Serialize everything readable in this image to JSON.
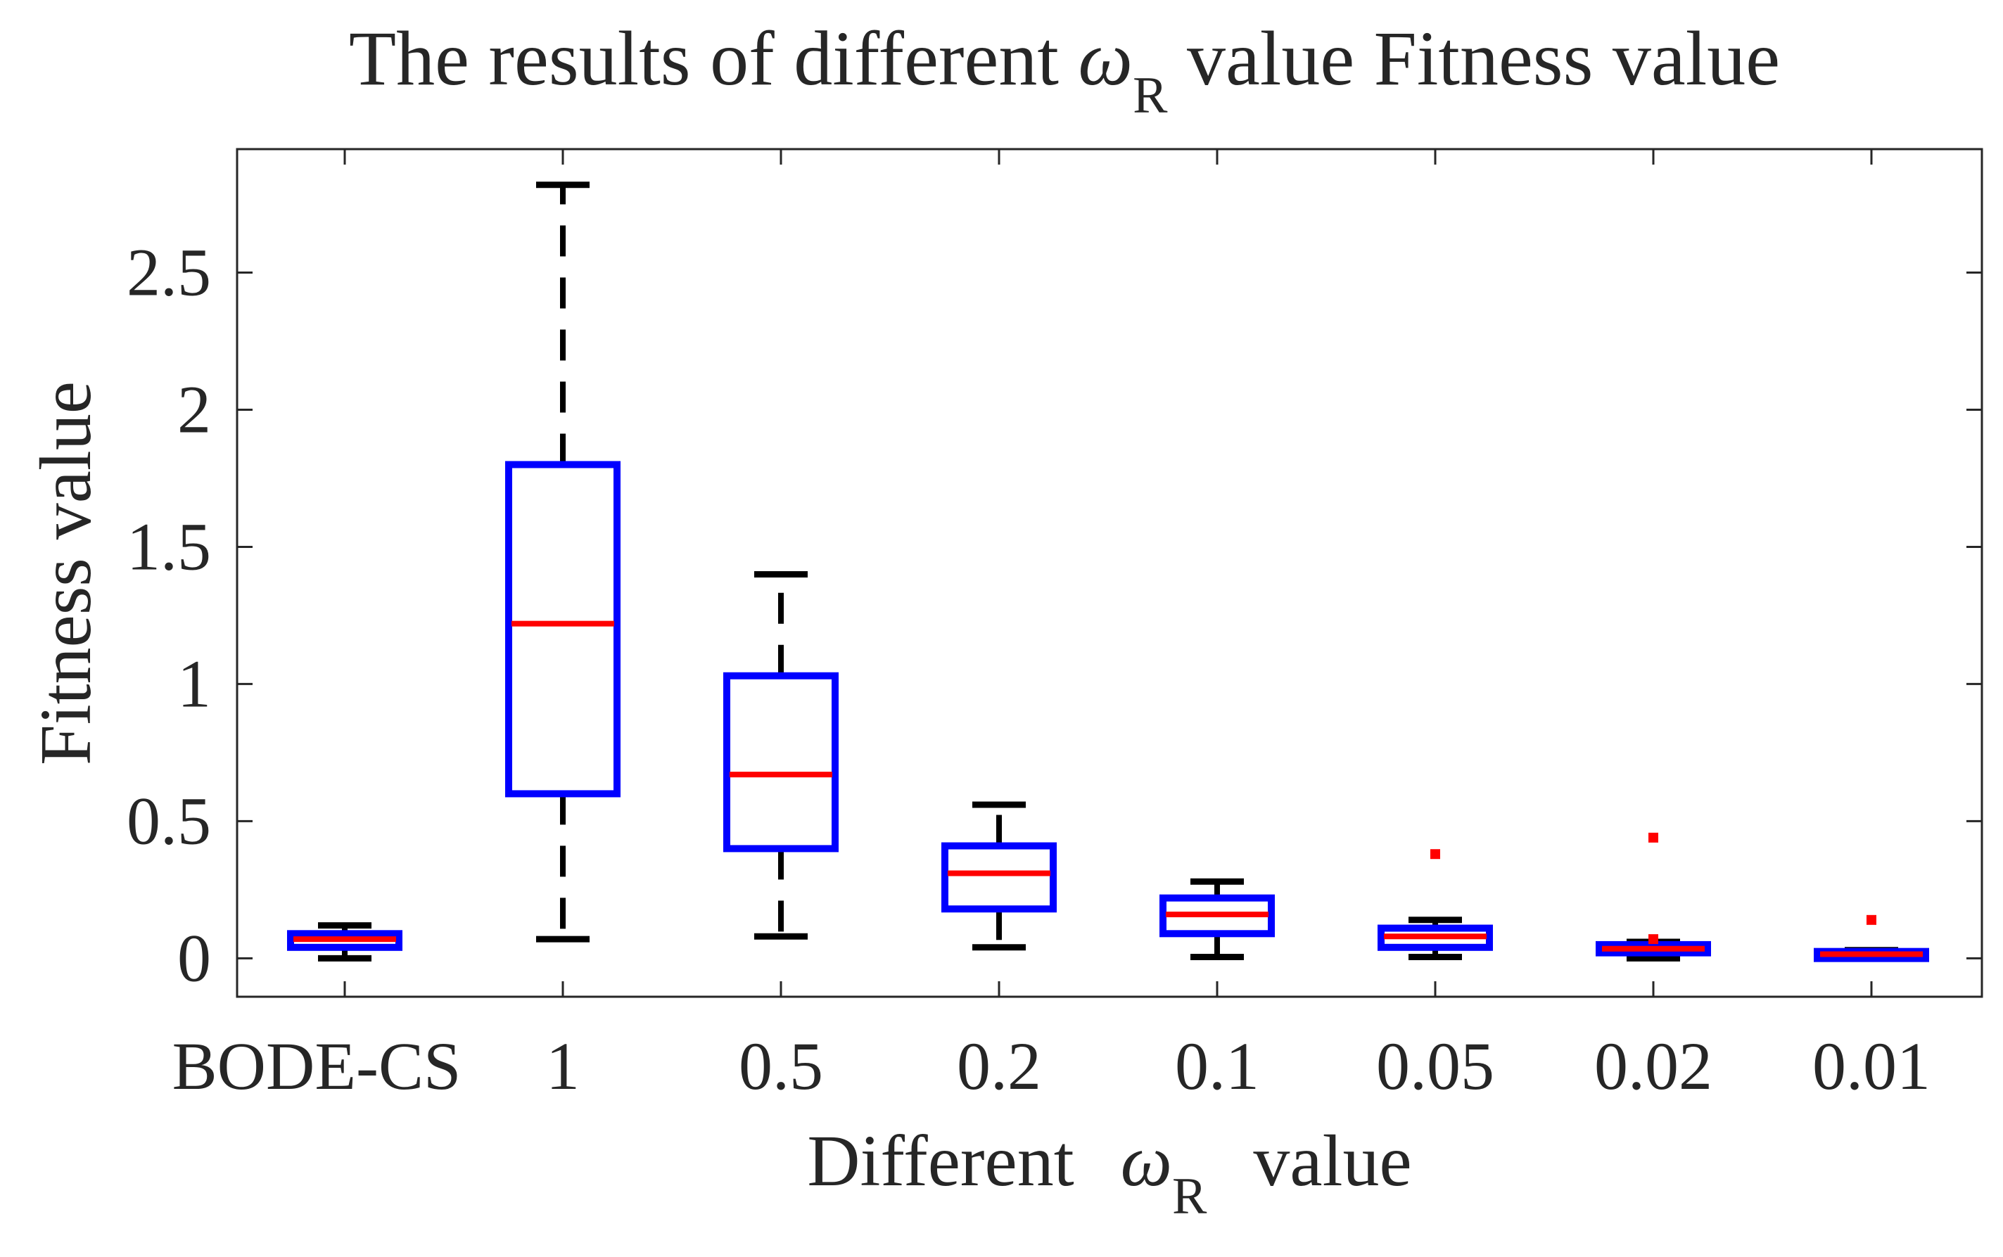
{
  "chart_data": {
    "type": "box",
    "title": {
      "pre": "The results of different ",
      "symbol": "ω",
      "subscript": "R",
      "post": " value Fitness value"
    },
    "xlabel": {
      "pre": "Different ",
      "symbol": "ω",
      "subscript": "R",
      "post": " value"
    },
    "ylabel": "Fitness value",
    "ylim": [
      -0.14,
      2.95
    ],
    "yticks": [
      {
        "value": 0,
        "label": "0"
      },
      {
        "value": 0.5,
        "label": "0.5"
      },
      {
        "value": 1,
        "label": "1"
      },
      {
        "value": 1.5,
        "label": "1.5"
      },
      {
        "value": 2,
        "label": "2"
      },
      {
        "value": 2.5,
        "label": "2.5"
      }
    ],
    "categories": [
      "BODE-CS",
      "1",
      "0.5",
      "0.2",
      "0.1",
      "0.05",
      "0.02",
      "0.01"
    ],
    "boxes": [
      {
        "category": "BODE-CS",
        "whisker_low": 0.0,
        "q1": 0.04,
        "median": 0.07,
        "q3": 0.09,
        "whisker_high": 0.12,
        "outliers": []
      },
      {
        "category": "1",
        "whisker_low": 0.07,
        "q1": 0.6,
        "median": 1.22,
        "q3": 1.8,
        "whisker_high": 2.82,
        "outliers": []
      },
      {
        "category": "0.5",
        "whisker_low": 0.08,
        "q1": 0.4,
        "median": 0.67,
        "q3": 1.03,
        "whisker_high": 1.4,
        "outliers": []
      },
      {
        "category": "0.2",
        "whisker_low": 0.04,
        "q1": 0.18,
        "median": 0.31,
        "q3": 0.41,
        "whisker_high": 0.56,
        "outliers": []
      },
      {
        "category": "0.1",
        "whisker_low": 0.005,
        "q1": 0.09,
        "median": 0.16,
        "q3": 0.22,
        "whisker_high": 0.28,
        "outliers": []
      },
      {
        "category": "0.05",
        "whisker_low": 0.005,
        "q1": 0.04,
        "median": 0.08,
        "q3": 0.11,
        "whisker_high": 0.14,
        "outliers": [
          0.38
        ]
      },
      {
        "category": "0.02",
        "whisker_low": 0.0,
        "q1": 0.02,
        "median": 0.035,
        "q3": 0.05,
        "whisker_high": 0.06,
        "outliers": [
          0.44,
          0.07
        ]
      },
      {
        "category": "0.01",
        "whisker_low": 0.0,
        "q1": 0.005,
        "median": 0.015,
        "q3": 0.025,
        "whisker_high": 0.03,
        "outliers": [
          0.14
        ]
      }
    ],
    "colors": {
      "box": "#0000ff",
      "median": "#ff0000",
      "whisker": "#000000",
      "outlier": "#ff0000",
      "axis": "#262626"
    },
    "grid": false,
    "legend": "none"
  }
}
